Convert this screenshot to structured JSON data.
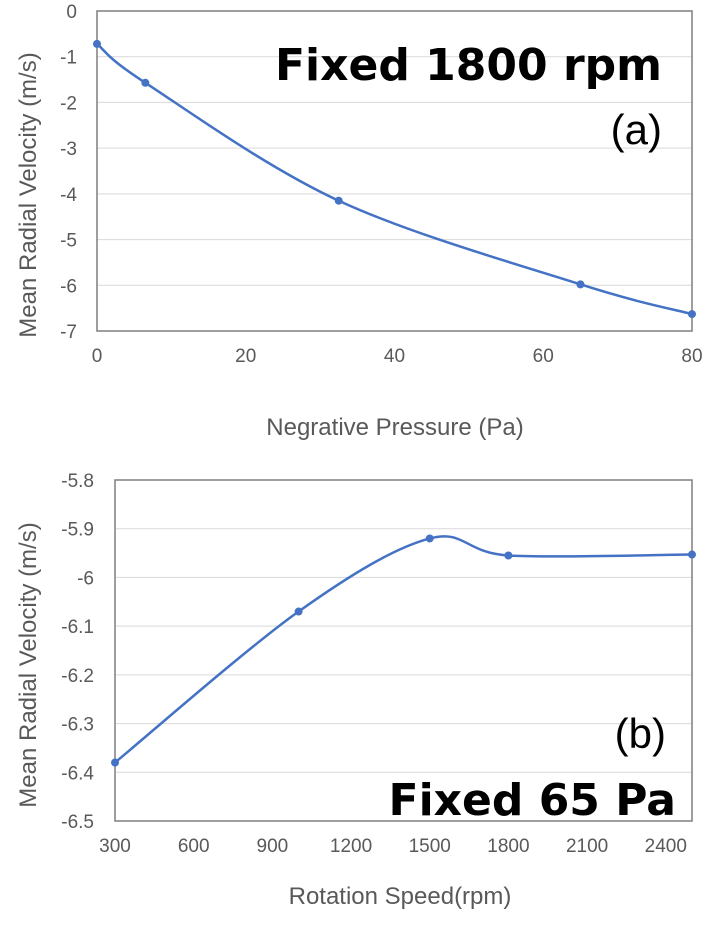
{
  "chart_data": [
    {
      "type": "line",
      "panel_label": "(a)",
      "title": "Fixed 1800 rpm",
      "xlabel": "Negrative Pressure (Pa)",
      "ylabel": "Mean Radial Velocity (m/s)",
      "xlim": [
        0,
        80
      ],
      "ylim": [
        -7,
        0
      ],
      "xticks": [
        0,
        20,
        40,
        60,
        80
      ],
      "yticks": [
        0,
        -1,
        -2,
        -3,
        -4,
        -5,
        -6,
        -7
      ],
      "xtick_labels": [
        "0",
        "20",
        "40",
        "60",
        "80"
      ],
      "ytick_labels": [
        "0",
        "-1",
        "-2",
        "-3",
        "-4",
        "-5",
        "-6",
        "-7"
      ],
      "grid": true,
      "smooth": true,
      "series": [
        {
          "name": "Mean Radial Velocity",
          "color": "#4472c4",
          "x": [
            0,
            6.5,
            32.5,
            65,
            80
          ],
          "y": [
            -0.72,
            -1.57,
            -4.15,
            -5.98,
            -6.63
          ]
        }
      ]
    },
    {
      "type": "line",
      "panel_label": "(b)",
      "title": "Fixed 65 Pa",
      "xlabel": "Rotation Speed(rpm)",
      "ylabel": "Mean Radial Velocity (m/s)",
      "xlim": [
        300,
        2500
      ],
      "ylim": [
        -6.5,
        -5.8
      ],
      "xticks": [
        300,
        600,
        900,
        1200,
        1500,
        1800,
        2100,
        2400
      ],
      "yticks": [
        -5.8,
        -5.9,
        -6.0,
        -6.1,
        -6.2,
        -6.3,
        -6.4,
        -6.5
      ],
      "xtick_labels": [
        "300",
        "600",
        "900",
        "1200",
        "1500",
        "1800",
        "2100",
        "2400"
      ],
      "ytick_labels": [
        "-5.8",
        "-5.9",
        "-6",
        "-6.1",
        "-6.2",
        "-6.3",
        "-6.4",
        "-6.5"
      ],
      "grid": true,
      "smooth": true,
      "series": [
        {
          "name": "Mean Radial Velocity",
          "color": "#4472c4",
          "x": [
            300,
            1000,
            1500,
            1800,
            2500
          ],
          "y": [
            -6.38,
            -6.07,
            -5.92,
            -5.955,
            -5.953
          ]
        }
      ]
    }
  ]
}
